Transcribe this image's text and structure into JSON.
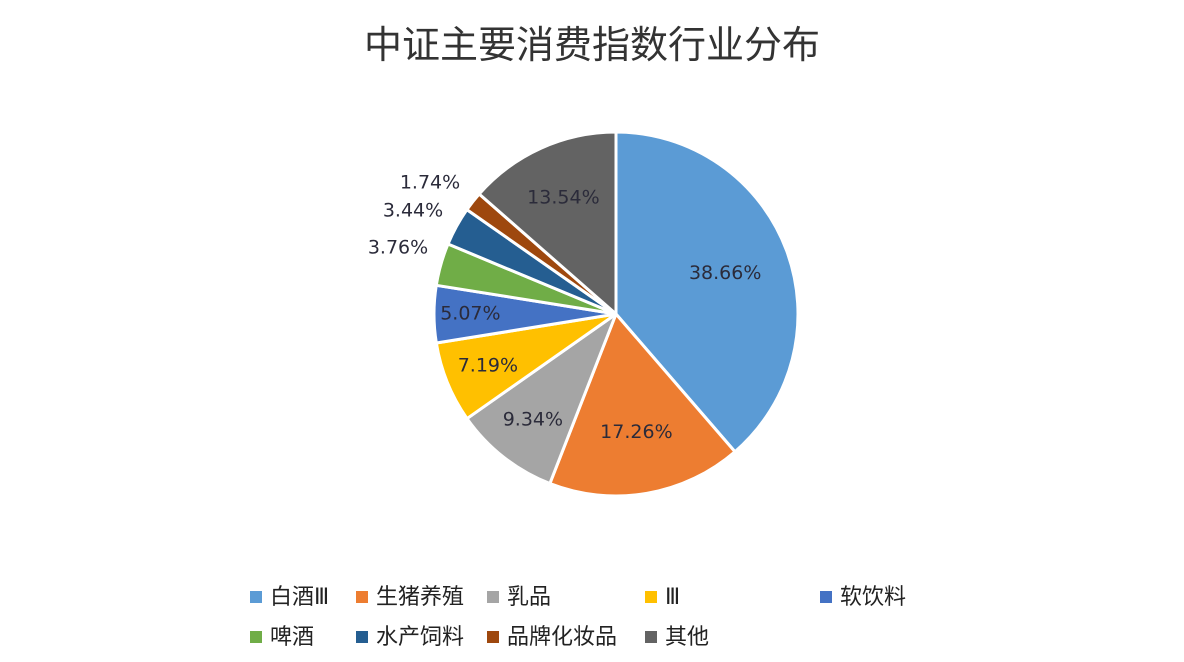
{
  "chart_data": {
    "type": "pie",
    "title": "中证主要消费指数行业分布",
    "start_angle_deg": 0,
    "direction": "clockwise",
    "slices": [
      {
        "label": "白酒Ⅲ",
        "value": 38.66,
        "display": "38.66%",
        "color": "#5b9bd5"
      },
      {
        "label": "生猪养殖",
        "value": 17.26,
        "display": "17.26%",
        "color": "#ed7d31"
      },
      {
        "label": "乳品",
        "value": 9.34,
        "display": "9.34%",
        "color": "#a5a5a5"
      },
      {
        "label": "Ⅲ",
        "value": 7.19,
        "display": "7.19%",
        "color": "#ffc000"
      },
      {
        "label": "软饮料",
        "value": 5.07,
        "display": "5.07%",
        "color": "#4472c4"
      },
      {
        "label": "啤酒",
        "value": 3.76,
        "display": "3.76%",
        "color": "#70ad47"
      },
      {
        "label": "水产饲料",
        "value": 3.44,
        "display": "3.44%",
        "color": "#255e91"
      },
      {
        "label": "品牌化妆品",
        "value": 1.74,
        "display": "1.74%",
        "color": "#9e480e"
      },
      {
        "label": "其他",
        "value": 13.54,
        "display": "13.54%",
        "color": "#636363"
      }
    ],
    "legend_position": "bottom"
  }
}
